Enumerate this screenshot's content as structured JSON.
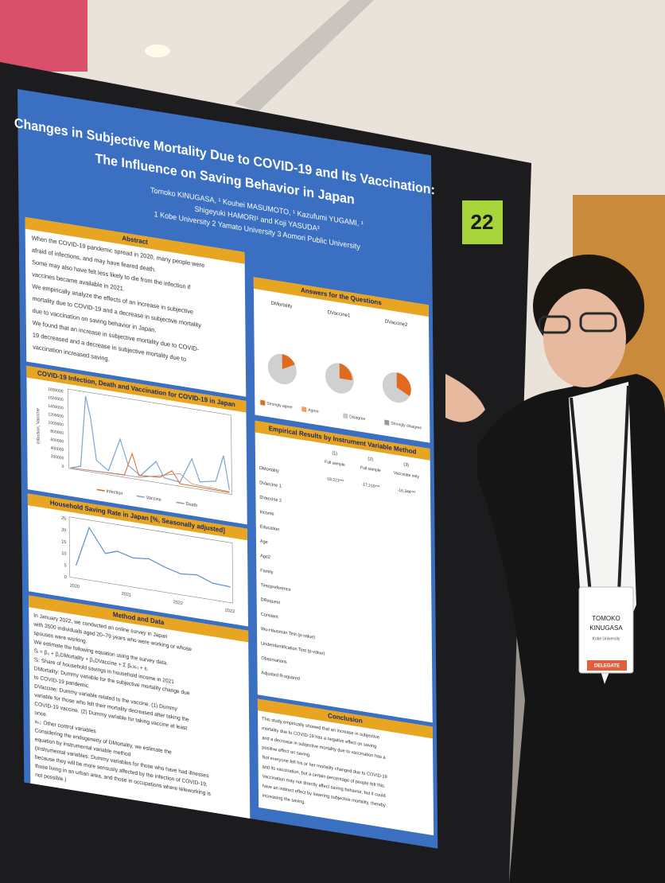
{
  "poster": {
    "title": [
      "Changes in Subjective Mortality Due to COVID-19 and Its Vaccination:",
      "The Influence on Saving Behavior in Japan"
    ],
    "authors": [
      "Tomoko KINUGASA, ¹ Kouhei MASUMOTO, ¹ Kazufumi YUGAMI, ¹",
      "Shigeyuki HAMORI¹ and Koji YASUDA³",
      "1 Kobe University 2 Yamato University 3 Aomori Public University"
    ],
    "abstract": {
      "heading": "Abstract",
      "lines": [
        "When the COVID-19 pandemic spread in 2020, many people were",
        "afraid of infections, and may have feared death.",
        "Some may also have felt less likely to die from the infection if",
        "vaccines became available in 2021.",
        "We empirically analyze the effects of an increase in subjective",
        "mortality due to COVID-19 and a decrease in subjective mortality",
        "due to vaccination on saving behavior in Japan.",
        "We found that an increase in subjective mortality due to COVID-",
        "19 decreased and a decrease in subjective mortality due to",
        "vaccination increased saving."
      ]
    },
    "covid_chart": {
      "heading": "COVID-19 Infection, Death and Vaccination for COVID-19 in Japan",
      "y_label": "Infection, Vaccine",
      "yticks": [
        "1800000",
        "1600000",
        "1400000",
        "1200000",
        "1000000",
        "800000",
        "600000",
        "400000",
        "200000",
        "0"
      ],
      "legend": [
        "Infection",
        "Vaccine",
        "Death"
      ]
    },
    "saving_chart": {
      "heading": "Household Saving Rate in Japan [%, Seasonally adjusted]",
      "yticks": [
        "25",
        "20",
        "15",
        "10",
        "5",
        "0"
      ],
      "xticks": [
        "2020",
        "2021",
        "2022",
        "2023"
      ]
    },
    "method": {
      "heading": "Method and Data",
      "lines": [
        "In January 2022, we conducted an online survey in Japan",
        "with 3500 individuals aged 20–79 years who were working or whose",
        "spouses were working.",
        "We estimate the following equation using the survey data.",
        "Sᵢ = β₀ + β₁DMortality + β₂DVaccine + Σ βₖxₖᵢ + εᵢ",
        "Sᵢ: Share of household savings in household income in 2021",
        "DMortality: Dummy variable for the subjective mortality change due",
        "to COVID-19 pandemic.",
        "DVaccine: Dummy variable related to the vaccine. (1) Dummy",
        "variable for those who felt their mortality decreased after taking the",
        "COVID-19 vaccine. (2) Dummy variable for taking vaccine at least",
        "once.",
        "xₖᵢ: Other control variables",
        "Considering the endogeneity of DMortality, we estimate the",
        "equation by instrumental variable method",
        "(Instrumental variables: Dummy variables for those who have had illnesses",
        "because they will be more seriously affected by the infection of COVID-19,",
        "those living in an urban area, and those in occupations where teleworking is",
        "not possible.)"
      ]
    },
    "answers": {
      "heading": "Answers for the Questions",
      "columns": [
        "DMortality",
        "DVaccine1",
        "DVaccine2"
      ],
      "legend": [
        "Strongly agree",
        "Agree",
        "Disagree",
        "Strongly disagree"
      ]
    },
    "empirical": {
      "heading": "Empirical Results by Instrument Variable Method",
      "columns": [
        "(1)",
        "(2)",
        "(3)"
      ],
      "subheads": [
        "Full sample",
        "Full sample",
        "Vaccinate only"
      ],
      "rows": [
        "DMortality",
        "DVaccine 1",
        "DVaccine 2",
        "Income",
        "Education",
        "Age",
        "Age2",
        "Family",
        "Timepreference",
        "DRequest",
        "Constant",
        "Wu-Hausman Test (p-value)",
        "Underidentification Test (p-value)",
        "Observations",
        "Adjusted R-squared"
      ],
      "first_row": [
        "-18.221***",
        "-17.216***",
        "-16.344***"
      ]
    },
    "conclusion": {
      "heading": "Conclusion",
      "lines": [
        "This study empirically showed that an increase in subjective",
        "mortality due to COVID-19 has a negative effect on saving",
        "and a decrease in subjective mortality due to vaccination has a",
        "positive effect on saving.",
        "Not everyone felt his or her mortality changed due to COVID-19",
        "and its vaccination, but a certain percentage of people felt this.",
        "Vaccination may not directly affect saving behavior, but it could",
        "have an indirect effect by lowering subjective mortality, thereby",
        "increasing the saving."
      ]
    }
  },
  "board_number": "22",
  "badge": {
    "name": [
      "TOMOKO",
      "KINUGASA"
    ],
    "affiliation": "Kobe University",
    "role": "DELEGATE"
  }
}
